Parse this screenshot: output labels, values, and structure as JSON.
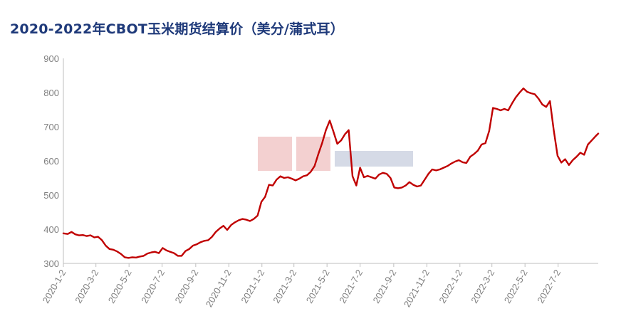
{
  "chart_data": {
    "type": "line",
    "title": "2020-2022年CBOT玉米期货结算价（美分/蒲式耳）",
    "xlabel": "",
    "ylabel": "",
    "ylim": [
      300,
      900
    ],
    "yticks": [
      300,
      400,
      500,
      600,
      700,
      800,
      900
    ],
    "x_range": [
      "2020-01-02",
      "2022-09-14"
    ],
    "xticks": [
      "2020-1-2",
      "2020-3-2",
      "2020-5-2",
      "2020-7-2",
      "2020-9-2",
      "2020-11-2",
      "2021-1-2",
      "2021-3-2",
      "2021-5-2",
      "2021-7-2",
      "2021-9-2",
      "2021-11-2",
      "2022-1-2",
      "2022-3-2",
      "2022-5-2",
      "2022-7-2"
    ],
    "grid": false,
    "legend": "none",
    "line_color": "#c00000",
    "series": [
      {
        "points": [
          [
            "2020-01-02",
            388
          ],
          [
            "2020-01-10",
            386
          ],
          [
            "2020-01-17",
            392
          ],
          [
            "2020-01-24",
            385
          ],
          [
            "2020-01-31",
            382
          ],
          [
            "2020-02-07",
            383
          ],
          [
            "2020-02-14",
            380
          ],
          [
            "2020-02-21",
            382
          ],
          [
            "2020-02-28",
            376
          ],
          [
            "2020-03-06",
            378
          ],
          [
            "2020-03-13",
            368
          ],
          [
            "2020-03-20",
            352
          ],
          [
            "2020-03-27",
            342
          ],
          [
            "2020-04-03",
            340
          ],
          [
            "2020-04-10",
            335
          ],
          [
            "2020-04-17",
            328
          ],
          [
            "2020-04-24",
            318
          ],
          [
            "2020-05-01",
            316
          ],
          [
            "2020-05-08",
            318
          ],
          [
            "2020-05-15",
            317
          ],
          [
            "2020-05-22",
            320
          ],
          [
            "2020-05-29",
            322
          ],
          [
            "2020-06-05",
            329
          ],
          [
            "2020-06-12",
            332
          ],
          [
            "2020-06-19",
            334
          ],
          [
            "2020-06-26",
            330
          ],
          [
            "2020-07-03",
            345
          ],
          [
            "2020-07-10",
            338
          ],
          [
            "2020-07-17",
            334
          ],
          [
            "2020-07-24",
            330
          ],
          [
            "2020-07-31",
            322
          ],
          [
            "2020-08-07",
            322
          ],
          [
            "2020-08-14",
            336
          ],
          [
            "2020-08-21",
            342
          ],
          [
            "2020-08-28",
            352
          ],
          [
            "2020-09-04",
            356
          ],
          [
            "2020-09-11",
            362
          ],
          [
            "2020-09-18",
            366
          ],
          [
            "2020-09-25",
            368
          ],
          [
            "2020-10-02",
            378
          ],
          [
            "2020-10-09",
            392
          ],
          [
            "2020-10-16",
            402
          ],
          [
            "2020-10-23",
            410
          ],
          [
            "2020-10-30",
            398
          ],
          [
            "2020-11-06",
            412
          ],
          [
            "2020-11-13",
            420
          ],
          [
            "2020-11-20",
            426
          ],
          [
            "2020-11-27",
            430
          ],
          [
            "2020-12-04",
            428
          ],
          [
            "2020-12-11",
            424
          ],
          [
            "2020-12-18",
            430
          ],
          [
            "2020-12-25",
            440
          ],
          [
            "2021-01-01",
            480
          ],
          [
            "2021-01-08",
            495
          ],
          [
            "2021-01-15",
            530
          ],
          [
            "2021-01-22",
            528
          ],
          [
            "2021-01-29",
            545
          ],
          [
            "2021-02-05",
            555
          ],
          [
            "2021-02-12",
            550
          ],
          [
            "2021-02-19",
            552
          ],
          [
            "2021-02-26",
            548
          ],
          [
            "2021-03-05",
            543
          ],
          [
            "2021-03-12",
            548
          ],
          [
            "2021-03-19",
            555
          ],
          [
            "2021-03-26",
            558
          ],
          [
            "2021-04-02",
            568
          ],
          [
            "2021-04-09",
            585
          ],
          [
            "2021-04-16",
            620
          ],
          [
            "2021-04-23",
            652
          ],
          [
            "2021-04-30",
            690
          ],
          [
            "2021-05-07",
            718
          ],
          [
            "2021-05-14",
            685
          ],
          [
            "2021-05-21",
            650
          ],
          [
            "2021-05-28",
            660
          ],
          [
            "2021-06-04",
            678
          ],
          [
            "2021-06-11",
            690
          ],
          [
            "2021-06-18",
            555
          ],
          [
            "2021-06-25",
            528
          ],
          [
            "2021-07-02",
            580
          ],
          [
            "2021-07-09",
            552
          ],
          [
            "2021-07-16",
            556
          ],
          [
            "2021-07-23",
            552
          ],
          [
            "2021-07-30",
            548
          ],
          [
            "2021-08-06",
            560
          ],
          [
            "2021-08-13",
            565
          ],
          [
            "2021-08-20",
            562
          ],
          [
            "2021-08-27",
            550
          ],
          [
            "2021-09-03",
            522
          ],
          [
            "2021-09-10",
            520
          ],
          [
            "2021-09-17",
            522
          ],
          [
            "2021-09-24",
            528
          ],
          [
            "2021-10-01",
            538
          ],
          [
            "2021-10-08",
            530
          ],
          [
            "2021-10-15",
            525
          ],
          [
            "2021-10-22",
            528
          ],
          [
            "2021-10-29",
            545
          ],
          [
            "2021-11-05",
            562
          ],
          [
            "2021-11-12",
            575
          ],
          [
            "2021-11-19",
            572
          ],
          [
            "2021-11-26",
            575
          ],
          [
            "2021-12-03",
            580
          ],
          [
            "2021-12-10",
            585
          ],
          [
            "2021-12-17",
            592
          ],
          [
            "2021-12-24",
            598
          ],
          [
            "2021-12-31",
            602
          ],
          [
            "2022-01-07",
            596
          ],
          [
            "2022-01-14",
            594
          ],
          [
            "2022-01-21",
            612
          ],
          [
            "2022-01-28",
            620
          ],
          [
            "2022-02-04",
            630
          ],
          [
            "2022-02-11",
            648
          ],
          [
            "2022-02-18",
            652
          ],
          [
            "2022-02-25",
            688
          ],
          [
            "2022-03-04",
            755
          ],
          [
            "2022-03-11",
            752
          ],
          [
            "2022-03-18",
            748
          ],
          [
            "2022-03-25",
            752
          ],
          [
            "2022-04-01",
            748
          ],
          [
            "2022-04-08",
            768
          ],
          [
            "2022-04-15",
            786
          ],
          [
            "2022-04-22",
            800
          ],
          [
            "2022-04-29",
            812
          ],
          [
            "2022-05-06",
            802
          ],
          [
            "2022-05-13",
            798
          ],
          [
            "2022-05-20",
            795
          ],
          [
            "2022-05-27",
            782
          ],
          [
            "2022-06-03",
            765
          ],
          [
            "2022-06-10",
            758
          ],
          [
            "2022-06-17",
            775
          ],
          [
            "2022-06-24",
            690
          ],
          [
            "2022-07-01",
            615
          ],
          [
            "2022-07-08",
            595
          ],
          [
            "2022-07-15",
            605
          ],
          [
            "2022-07-22",
            588
          ],
          [
            "2022-07-29",
            602
          ],
          [
            "2022-08-05",
            612
          ],
          [
            "2022-08-12",
            624
          ],
          [
            "2022-08-19",
            618
          ],
          [
            "2022-08-26",
            648
          ],
          [
            "2022-09-02",
            660
          ],
          [
            "2022-09-09",
            672
          ],
          [
            "2022-09-14",
            680
          ]
        ]
      }
    ]
  }
}
